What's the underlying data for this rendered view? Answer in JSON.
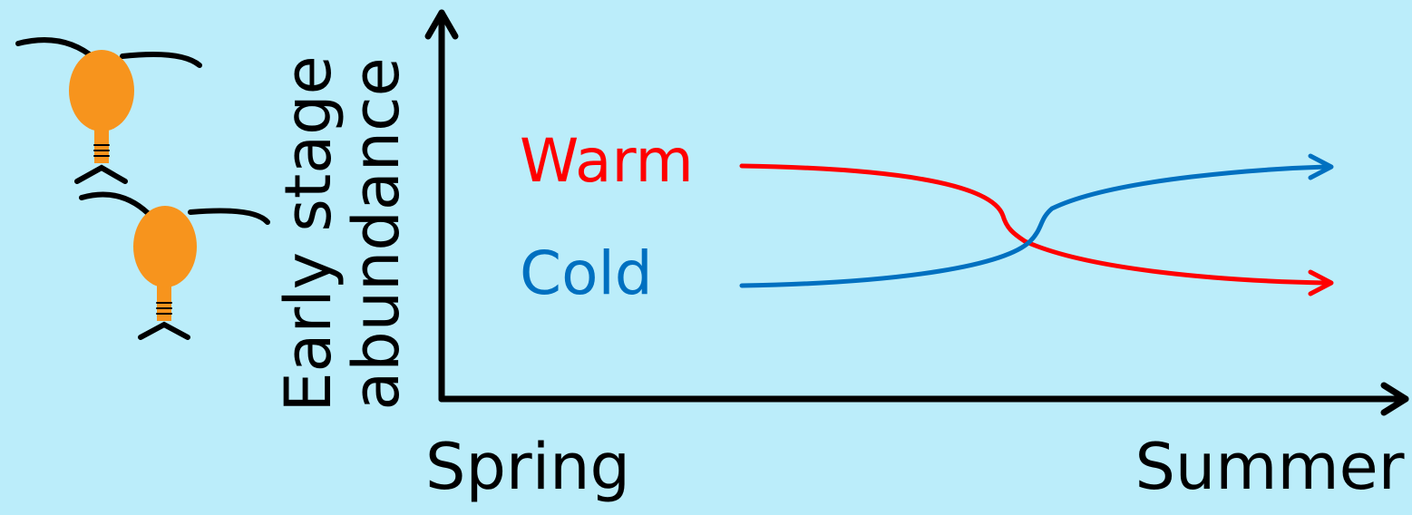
{
  "y_axis_label": [
    "Early stage",
    "abundance"
  ],
  "x_axis_labels": {
    "start": "Spring",
    "end": "Summer"
  },
  "series": [
    {
      "name": "Warm",
      "color": "#ff0000"
    },
    {
      "name": "Cold",
      "color": "#0070c0"
    }
  ]
}
